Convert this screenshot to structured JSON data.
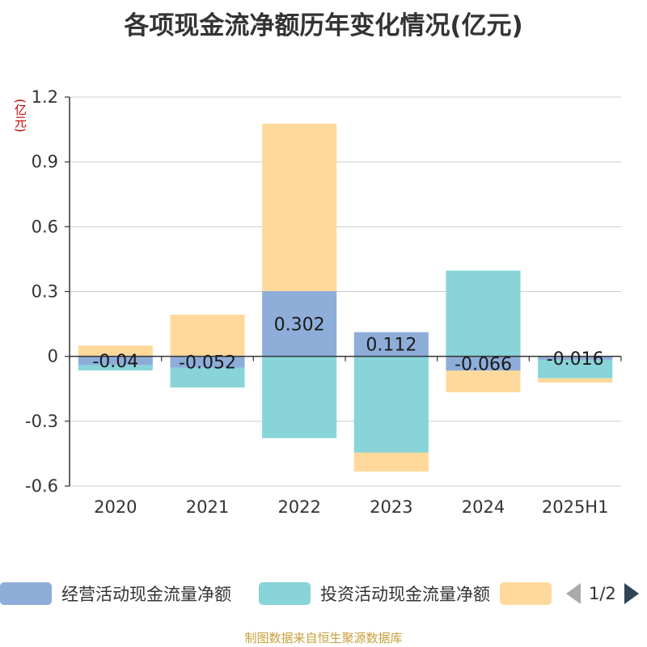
{
  "chart_data": {
    "type": "bar",
    "stacked": true,
    "title": "各项现金流净额历年变化情况(亿元)",
    "ylabel": "(亿元)",
    "categories": [
      "2020",
      "2021",
      "2022",
      "2023",
      "2024",
      "2025H1"
    ],
    "series": [
      {
        "name": "经营活动现金流量净额",
        "color": "#8eadd9",
        "values": [
          -0.04,
          -0.052,
          0.302,
          0.112,
          -0.066,
          -0.016
        ],
        "labels": [
          "-0.04",
          "-0.052",
          "0.302",
          "0.112",
          "-0.066",
          "-0.016"
        ]
      },
      {
        "name": "投资活动现金流量净额",
        "color": "#88d4d8",
        "values": [
          -0.025,
          -0.092,
          -0.378,
          -0.445,
          0.397,
          -0.085
        ]
      },
      {
        "name": "",
        "color": "#ffd99b",
        "values": [
          0.05,
          0.193,
          0.775,
          -0.088,
          -0.1,
          -0.02
        ]
      }
    ],
    "ylim": [
      -0.6,
      1.2
    ],
    "yticks": [
      "1.2",
      "0.9",
      "0.6",
      "0.3",
      "0",
      "-0.3",
      "-0.6"
    ],
    "ytick_values": [
      1.2,
      0.9,
      0.6,
      0.3,
      0,
      -0.3,
      -0.6
    ],
    "grid": true,
    "legend_position": "bottom"
  },
  "legend": {
    "page": "1/2"
  },
  "source": "制图数据来自恒生聚源数据库"
}
